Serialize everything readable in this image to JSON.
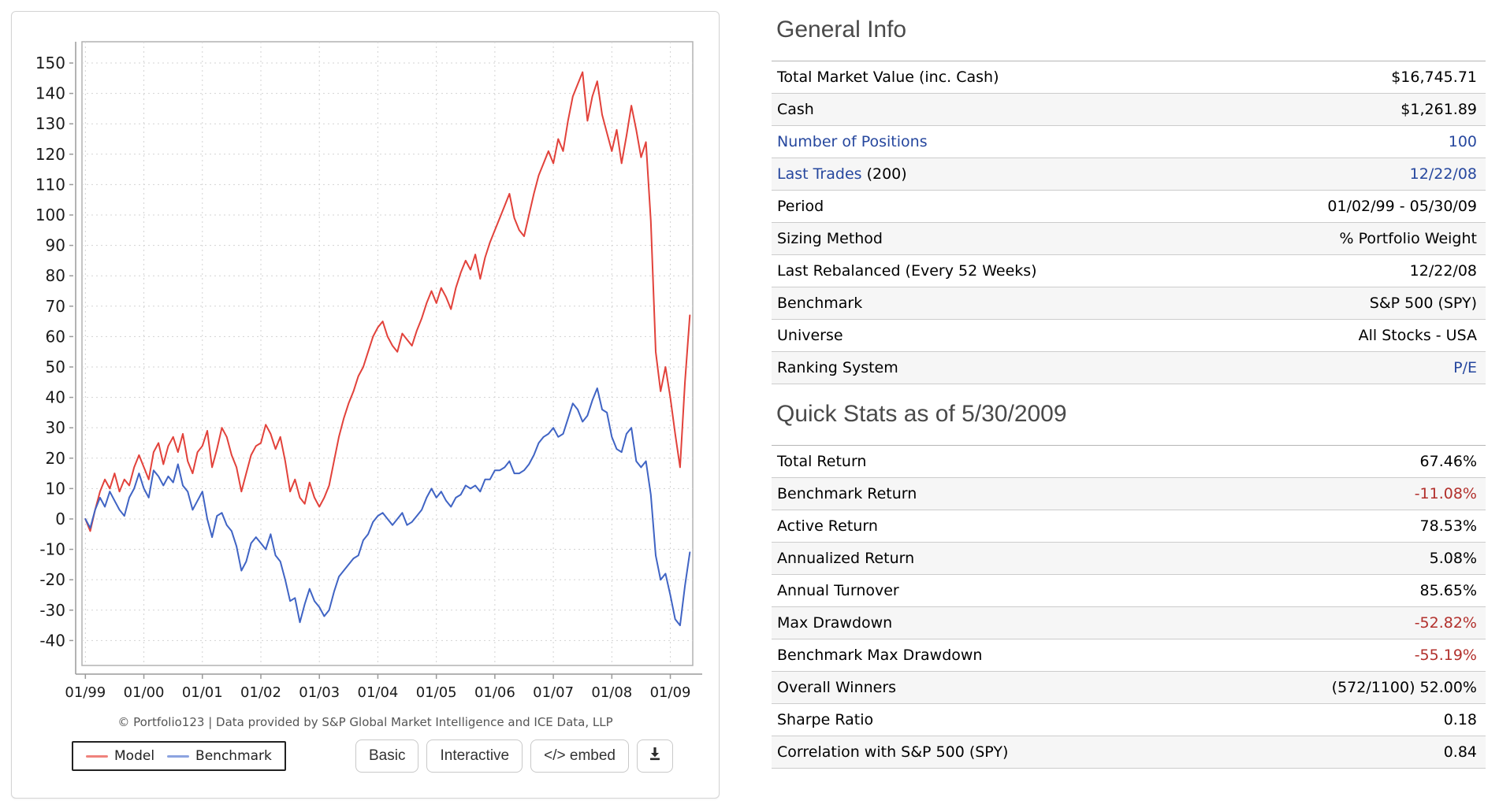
{
  "colors": {
    "model_line": "#e2423b",
    "benchmark_line": "#4064c4",
    "link": "#26479e",
    "negative": "#b2302c"
  },
  "panel": {
    "attribution": "© Portfolio123 | Data provided by S&P Global Market Intelligence and ICE Data, LLP",
    "buttons": {
      "basic": "Basic",
      "interactive": "Interactive",
      "embed": "</> embed"
    }
  },
  "chart_data": {
    "type": "line",
    "title": "",
    "xlabel": "",
    "ylabel": "",
    "x_unit": "months since 01/1999",
    "x_tick_labels": [
      "01/99",
      "01/00",
      "01/01",
      "01/02",
      "01/03",
      "01/04",
      "01/05",
      "01/06",
      "01/07",
      "01/08",
      "01/09"
    ],
    "x_tick_positions": [
      0,
      12,
      24,
      36,
      48,
      60,
      72,
      84,
      96,
      108,
      120
    ],
    "xlim": [
      -0.7,
      124.6
    ],
    "yticks": [
      150,
      140,
      130,
      120,
      110,
      100,
      90,
      80,
      70,
      60,
      50,
      40,
      30,
      20,
      10,
      0,
      -10,
      -20,
      -30,
      -40
    ],
    "ylim": [
      -48.2,
      157
    ],
    "grid": true,
    "legend_position": "bottom-left",
    "series": [
      {
        "name": "Model",
        "color": "#e2423b",
        "swatch": "#ef827c",
        "values": [
          0,
          -4,
          3,
          9,
          13,
          10,
          15,
          9,
          13,
          11,
          17,
          21,
          17,
          13,
          22,
          25,
          18,
          24,
          27,
          22,
          28,
          19,
          15,
          22,
          24,
          29,
          17,
          23,
          30,
          27,
          21,
          17,
          9,
          15,
          21,
          24,
          25,
          31,
          28,
          23,
          27,
          19,
          9,
          13,
          7,
          5,
          12,
          7,
          4,
          7,
          11,
          19,
          27,
          33,
          38,
          42,
          47,
          50,
          55,
          60,
          63,
          65,
          60,
          57,
          55,
          61,
          59,
          57,
          62,
          66,
          71,
          75,
          71,
          76,
          73,
          69,
          76,
          81,
          85,
          82,
          87,
          79,
          86,
          91,
          95,
          99,
          103,
          107,
          99,
          95,
          93,
          100,
          107,
          113,
          117,
          121,
          117,
          125,
          121,
          131,
          139,
          143,
          147,
          131,
          139,
          144,
          133,
          127,
          121,
          128,
          117,
          126,
          136,
          128,
          119,
          124,
          98,
          55,
          42,
          50,
          40,
          28,
          17,
          45,
          67
        ]
      },
      {
        "name": "Benchmark",
        "color": "#4064c4",
        "swatch": "#8ca3e0",
        "values": [
          0,
          -3,
          3,
          7,
          4,
          9,
          6,
          3,
          1,
          7,
          10,
          15,
          10,
          7,
          16,
          14,
          11,
          14,
          12,
          18,
          11,
          9,
          3,
          6,
          9,
          0,
          -6,
          1,
          2,
          -2,
          -4,
          -9,
          -17,
          -14,
          -8,
          -6,
          -8,
          -10,
          -5,
          -12,
          -14,
          -20,
          -27,
          -26,
          -34,
          -28,
          -23,
          -27,
          -29,
          -32,
          -30,
          -24,
          -19,
          -17,
          -15,
          -13,
          -12,
          -7,
          -5,
          -1,
          1,
          2,
          0,
          -2,
          0,
          2,
          -2,
          -1,
          1,
          3,
          7,
          10,
          7,
          9,
          6,
          4,
          7,
          8,
          11,
          10,
          11,
          9,
          13,
          13,
          16,
          16,
          17,
          19,
          15,
          15,
          16,
          18,
          21,
          25,
          27,
          28,
          30,
          27,
          28,
          33,
          38,
          36,
          32,
          34,
          39,
          43,
          36,
          35,
          27,
          23,
          22,
          28,
          30,
          19,
          17,
          19,
          8,
          -12,
          -20,
          -18,
          -25,
          -33,
          -35,
          -22,
          -11
        ]
      }
    ]
  },
  "general": {
    "title": "General Info",
    "rows": [
      {
        "label": "Total Market Value (inc. Cash)",
        "value": "$16,745.71"
      },
      {
        "label": "Cash",
        "value": "$1,261.89"
      },
      {
        "label": "Number of Positions",
        "value": "100"
      },
      {
        "label_link": "Last Trades",
        "label_suffix": " (200)",
        "value": "12/22/08"
      },
      {
        "label": "Period",
        "value": "01/02/99 - 05/30/09"
      },
      {
        "label": "Sizing Method",
        "value": "% Portfolio Weight"
      },
      {
        "label": "Last Rebalanced (Every 52 Weeks)",
        "value": "12/22/08"
      },
      {
        "label": "Benchmark",
        "value": "S&P 500 (SPY)"
      },
      {
        "label": "Universe",
        "value": "All Stocks - USA"
      },
      {
        "label": "Ranking System",
        "value": "P/E"
      }
    ]
  },
  "quick_stats": {
    "title": "Quick Stats as of 5/30/2009",
    "rows": [
      {
        "label": "Total Return",
        "value": "67.46%"
      },
      {
        "label": "Benchmark Return",
        "value": "-11.08%"
      },
      {
        "label": "Active Return",
        "value": "78.53%"
      },
      {
        "label": "Annualized Return",
        "value": "5.08%"
      },
      {
        "label": "Annual Turnover",
        "value": "85.65%"
      },
      {
        "label": "Max Drawdown",
        "value": "-52.82%"
      },
      {
        "label": "Benchmark Max Drawdown",
        "value": "-55.19%"
      },
      {
        "label": "Overall Winners",
        "value": "(572/1100) 52.00%"
      },
      {
        "label": "Sharpe Ratio",
        "value": "0.18"
      },
      {
        "label": "Correlation with S&P 500 (SPY)",
        "value": "0.84"
      }
    ]
  }
}
